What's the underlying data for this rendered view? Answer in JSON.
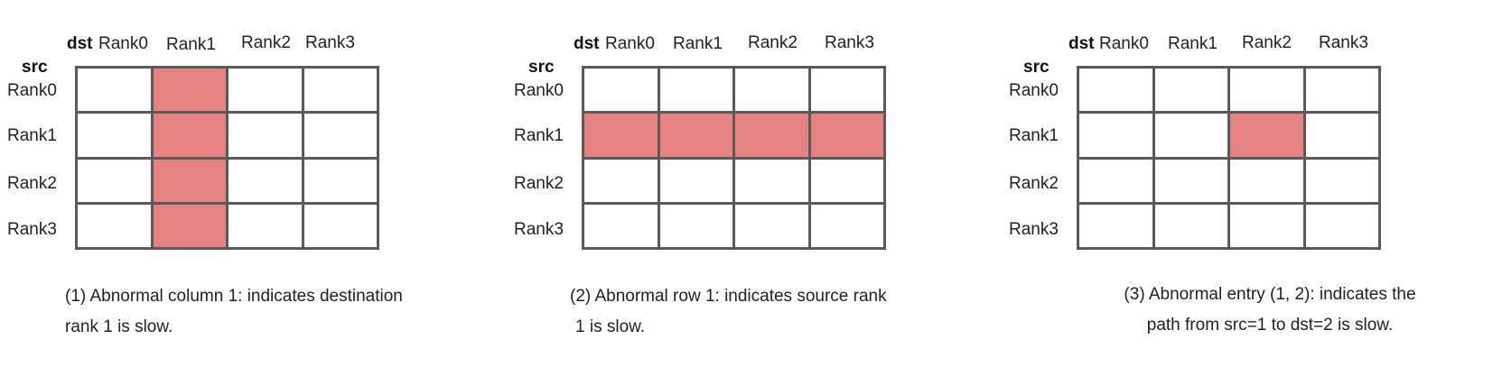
{
  "dst_label": "dst",
  "src_label": "src",
  "col_labels": [
    "Rank0",
    "Rank1",
    "Rank2",
    "Rank3"
  ],
  "row_labels": [
    "Rank0",
    "Rank1",
    "Rank2",
    "Rank3"
  ],
  "highlight_color": "#e58383",
  "grid_color": "#5a5a5a",
  "panels": [
    {
      "highlighted": [
        [
          0,
          1
        ],
        [
          1,
          1
        ],
        [
          2,
          1
        ],
        [
          3,
          1
        ]
      ],
      "caption_line1": "(1) Abnormal column 1:  indicates destination",
      "caption_line2": "rank 1 is slow."
    },
    {
      "highlighted": [
        [
          1,
          0
        ],
        [
          1,
          1
        ],
        [
          1,
          2
        ],
        [
          1,
          3
        ]
      ],
      "caption_line1": "(2) Abnormal row 1: indicates source rank",
      "caption_line2": "1 is slow."
    },
    {
      "highlighted": [
        [
          1,
          2
        ]
      ],
      "caption_line1": "(3) Abnormal entry (1, 2): indicates the",
      "caption_line2": "path from src=1 to dst=2 is slow."
    }
  ]
}
